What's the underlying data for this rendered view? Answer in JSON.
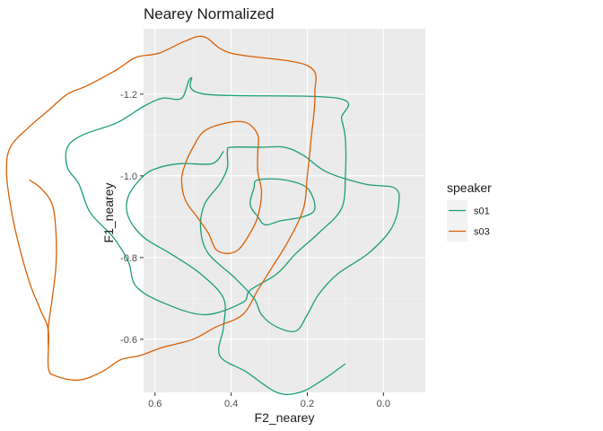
{
  "chart_data": {
    "type": "line",
    "title": "Nearey Normalized",
    "xlabel": "F2_nearey",
    "ylabel": "F1_nearey",
    "x_reversed": true,
    "y_reversed": true,
    "xlim": [
      -0.11,
      0.63
    ],
    "ylim": [
      -0.47,
      -1.36
    ],
    "x_ticks": [
      0.6,
      0.4,
      0.2,
      0.0
    ],
    "x_tick_labels": [
      "0.6",
      "0.4",
      "0.2",
      "0.0"
    ],
    "y_ticks": [
      -1.2,
      -1.0,
      -0.8,
      -0.6
    ],
    "y_tick_labels": [
      "-1.2",
      "-1.0",
      "-0.8",
      "-0.6"
    ],
    "grid": true,
    "panel_background": "#EBEBEB",
    "legend": {
      "title": "speaker",
      "position": "right",
      "entries": [
        {
          "label": "s01",
          "color": "#1B9E77"
        },
        {
          "label": "s03",
          "color": "#D95F02"
        }
      ]
    },
    "series": [
      {
        "name": "s01",
        "color": "#1B9E77",
        "contours": [
          [
            [
              0.47,
              -1.2
            ],
            [
              0.505,
              -1.24
            ],
            [
              0.53,
              -1.19
            ],
            [
              0.58,
              -1.19
            ],
            [
              0.63,
              -1.17
            ],
            [
              0.7,
              -1.13
            ],
            [
              0.79,
              -1.1
            ],
            [
              0.83,
              -1.07
            ],
            [
              0.83,
              -1.02
            ],
            [
              0.8,
              -0.98
            ],
            [
              0.77,
              -0.91
            ],
            [
              0.71,
              -0.85
            ],
            [
              0.67,
              -0.79
            ],
            [
              0.65,
              -0.73
            ],
            [
              0.58,
              -0.69
            ],
            [
              0.47,
              -0.66
            ],
            [
              0.37,
              -0.69
            ],
            [
              0.35,
              -0.72
            ],
            [
              0.28,
              -0.76
            ],
            [
              0.23,
              -0.81
            ],
            [
              0.17,
              -0.86
            ],
            [
              0.11,
              -0.92
            ],
            [
              0.1,
              -1
            ],
            [
              0.1,
              -1.09
            ],
            [
              0.11,
              -1.14
            ],
            [
              0.12,
              -1.19
            ]
          ],
          [
            [
              0.4,
              -1.07
            ],
            [
              0.32,
              -1.07
            ],
            [
              0.26,
              -1.07
            ],
            [
              0.21,
              -1.05
            ],
            [
              0.15,
              -1.01
            ],
            [
              0.05,
              -0.98
            ],
            [
              -0.03,
              -0.97
            ],
            [
              -0.04,
              -0.93
            ],
            [
              -0.02,
              -0.87
            ],
            [
              0.04,
              -0.81
            ],
            [
              0.12,
              -0.76
            ],
            [
              0.17,
              -0.71
            ],
            [
              0.2,
              -0.66
            ],
            [
              0.23,
              -0.62
            ],
            [
              0.28,
              -0.63
            ],
            [
              0.32,
              -0.66
            ],
            [
              0.34,
              -0.7
            ],
            [
              0.39,
              -0.75
            ],
            [
              0.46,
              -0.81
            ],
            [
              0.48,
              -0.87
            ],
            [
              0.47,
              -0.93
            ],
            [
              0.43,
              -0.98
            ],
            [
              0.41,
              -1.02
            ],
            [
              0.41,
              -1.06
            ]
          ],
          [
            [
              0.33,
              -0.99
            ],
            [
              0.26,
              -0.99
            ],
            [
              0.2,
              -0.97
            ],
            [
              0.18,
              -0.92
            ],
            [
              0.21,
              -0.9
            ],
            [
              0.27,
              -0.89
            ],
            [
              0.31,
              -0.88
            ],
            [
              0.33,
              -0.9
            ],
            [
              0.35,
              -0.93
            ],
            [
              0.34,
              -0.97
            ]
          ],
          [
            [
              0.1,
              -0.54
            ],
            [
              0.16,
              -0.5
            ],
            [
              0.22,
              -0.47
            ],
            [
              0.28,
              -0.47
            ],
            [
              0.36,
              -0.52
            ],
            [
              0.43,
              -0.56
            ],
            [
              0.42,
              -0.63
            ],
            [
              0.42,
              -0.7
            ],
            [
              0.48,
              -0.76
            ],
            [
              0.56,
              -0.81
            ],
            [
              0.63,
              -0.85
            ],
            [
              0.67,
              -0.9
            ],
            [
              0.67,
              -0.95
            ],
            [
              0.63,
              -1.0
            ],
            [
              0.59,
              -1.02
            ],
            [
              0.53,
              -1.03
            ],
            [
              0.45,
              -1.03
            ],
            [
              0.42,
              -1.06
            ]
          ]
        ]
      },
      {
        "name": "s03",
        "color": "#D95F02",
        "contours": [
          [
            [
              0.4,
              -1.3
            ],
            [
              0.47,
              -1.34
            ],
            [
              0.52,
              -1.33
            ],
            [
              0.59,
              -1.3
            ],
            [
              0.65,
              -1.29
            ],
            [
              0.7,
              -1.26
            ],
            [
              0.78,
              -1.22
            ],
            [
              0.83,
              -1.2
            ],
            [
              0.88,
              -1.16
            ],
            [
              0.93,
              -1.12
            ],
            [
              0.98,
              -1.07
            ],
            [
              0.99,
              -1.01
            ],
            [
              0.98,
              -0.93
            ],
            [
              0.96,
              -0.84
            ],
            [
              0.93,
              -0.74
            ],
            [
              0.9,
              -0.67
            ],
            [
              0.88,
              -0.62
            ],
            [
              0.88,
              -0.53
            ],
            [
              0.86,
              -0.51
            ],
            [
              0.8,
              -0.5
            ],
            [
              0.74,
              -0.52
            ],
            [
              0.69,
              -0.55
            ],
            [
              0.64,
              -0.56
            ],
            [
              0.58,
              -0.58
            ],
            [
              0.5,
              -0.6
            ],
            [
              0.44,
              -0.63
            ],
            [
              0.37,
              -0.66
            ],
            [
              0.33,
              -0.72
            ],
            [
              0.29,
              -0.78
            ],
            [
              0.25,
              -0.84
            ],
            [
              0.21,
              -0.92
            ],
            [
              0.2,
              -1.0
            ],
            [
              0.19,
              -1.09
            ],
            [
              0.18,
              -1.2
            ],
            [
              0.2,
              -1.27
            ]
          ],
          [
            [
              0.33,
              -1.1
            ],
            [
              0.36,
              -1.13
            ],
            [
              0.41,
              -1.13
            ],
            [
              0.47,
              -1.11
            ],
            [
              0.5,
              -1.07
            ],
            [
              0.52,
              -1.03
            ],
            [
              0.53,
              -0.99
            ],
            [
              0.52,
              -0.94
            ],
            [
              0.49,
              -0.9
            ],
            [
              0.46,
              -0.86
            ],
            [
              0.44,
              -0.82
            ],
            [
              0.41,
              -0.81
            ],
            [
              0.38,
              -0.82
            ],
            [
              0.35,
              -0.86
            ],
            [
              0.33,
              -0.9
            ],
            [
              0.32,
              -0.96
            ],
            [
              0.33,
              -1.01
            ],
            [
              0.33,
              -1.06
            ]
          ],
          [
            [
              0.93,
              -0.99
            ],
            [
              0.9,
              -0.97
            ],
            [
              0.87,
              -0.93
            ],
            [
              0.86,
              -0.86
            ],
            [
              0.86,
              -0.78
            ],
            [
              0.87,
              -0.7
            ],
            [
              0.88,
              -0.63
            ],
            [
              0.88,
              -0.58
            ]
          ]
        ]
      }
    ]
  }
}
